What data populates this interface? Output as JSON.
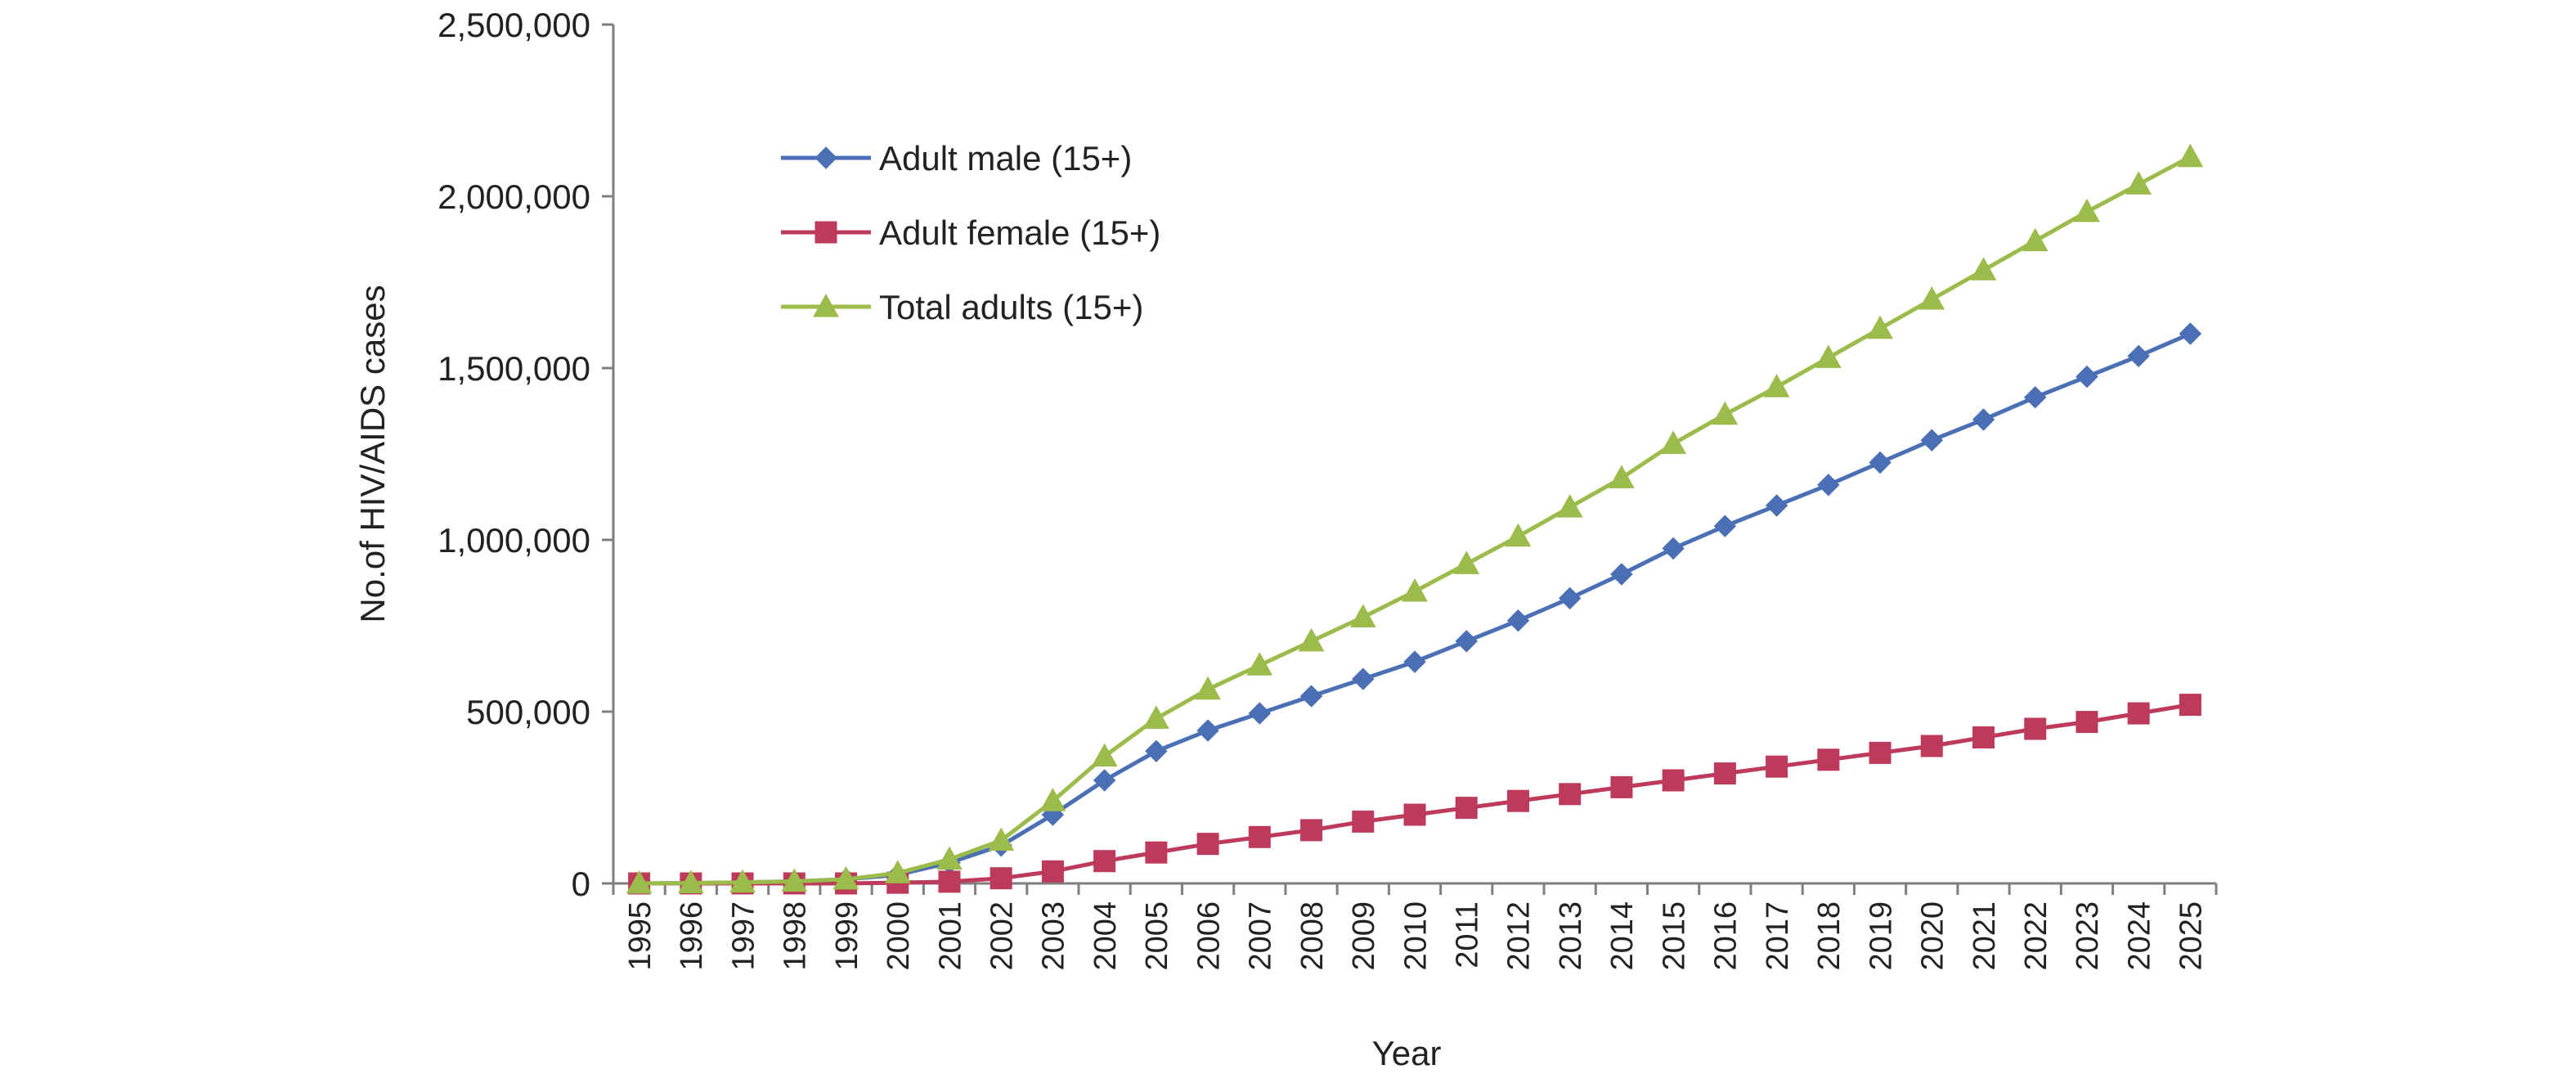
{
  "chart_data": {
    "type": "line",
    "title": "",
    "xlabel": "Year",
    "ylabel": "No.of HIV/AIDS cases",
    "ylim": [
      0,
      2500000
    ],
    "yticks": [
      "0",
      "500,000",
      "1,000,000",
      "1,500,000",
      "2,000,000",
      "2,500,000"
    ],
    "ytick_values": [
      0,
      500000,
      1000000,
      1500000,
      2000000,
      2500000
    ],
    "grid": false,
    "legend_position": "top-center",
    "categories": [
      "1995",
      "1996",
      "1997",
      "1998",
      "1999",
      "2000",
      "2001",
      "2002",
      "2003",
      "2004",
      "2005",
      "2006",
      "2007",
      "2008",
      "2009",
      "2010",
      "2011",
      "2012",
      "2013",
      "2014",
      "2015",
      "2016",
      "2017",
      "2018",
      "2019",
      "2020",
      "2021",
      "2022",
      "2023",
      "2024",
      "2025"
    ],
    "series": [
      {
        "name": "Adult male (15+)",
        "color": "#4a6fb5",
        "marker": "diamond",
        "values": [
          0,
          1000,
          3000,
          6000,
          12000,
          25000,
          60000,
          110000,
          200000,
          300000,
          385000,
          445000,
          495000,
          545000,
          595000,
          645000,
          705000,
          765000,
          830000,
          900000,
          975000,
          1040000,
          1100000,
          1160000,
          1225000,
          1290000,
          1350000,
          1415000,
          1475000,
          1535000,
          1600000
        ]
      },
      {
        "name": "Adult female (15+)",
        "color": "#be3a5a",
        "marker": "square",
        "values": [
          0,
          0,
          0,
          0,
          0,
          2000,
          5000,
          15000,
          35000,
          65000,
          90000,
          115000,
          135000,
          155000,
          180000,
          200000,
          220000,
          240000,
          260000,
          280000,
          300000,
          320000,
          340000,
          360000,
          380000,
          400000,
          425000,
          450000,
          470000,
          495000,
          520000
        ]
      },
      {
        "name": "Total adults (15+)",
        "color": "#9bbb4a",
        "marker": "triangle",
        "values": [
          0,
          1000,
          3000,
          6000,
          12000,
          30000,
          70000,
          125000,
          240000,
          370000,
          480000,
          565000,
          635000,
          705000,
          775000,
          850000,
          930000,
          1010000,
          1095000,
          1180000,
          1280000,
          1365000,
          1445000,
          1530000,
          1615000,
          1700000,
          1785000,
          1870000,
          1955000,
          2035000,
          2115000
        ]
      }
    ]
  }
}
